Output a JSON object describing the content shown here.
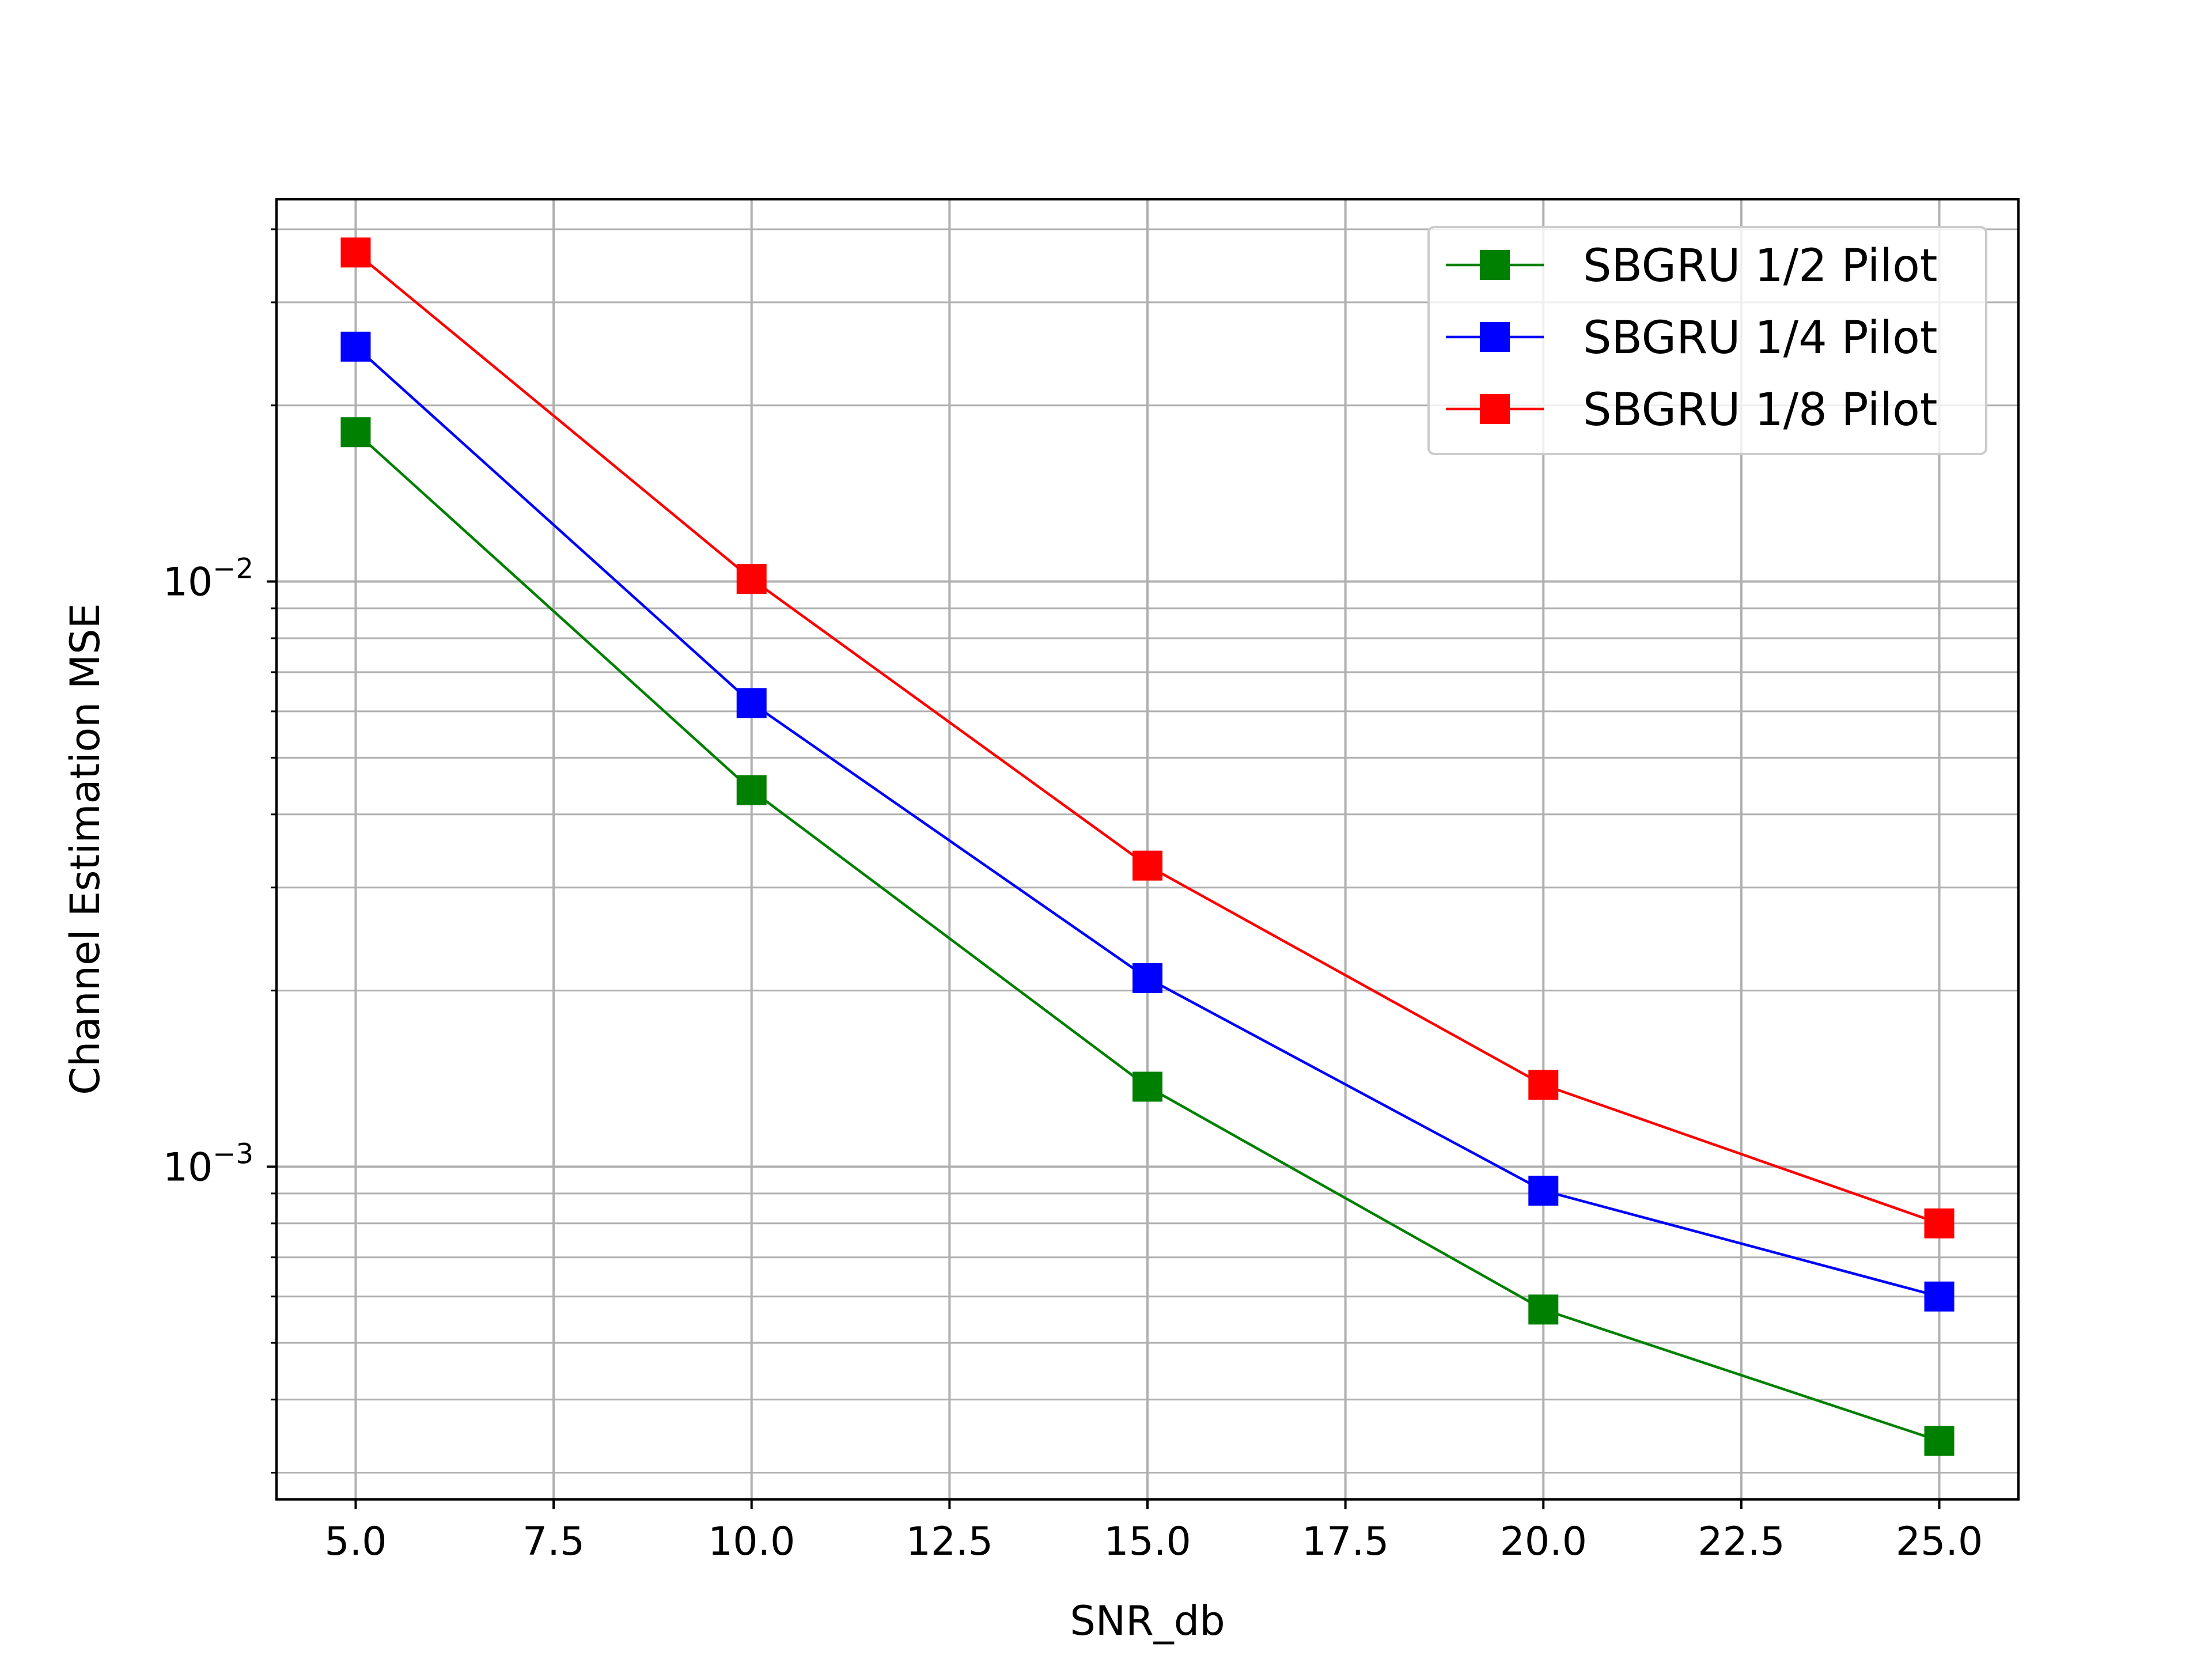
{
  "chart_data": {
    "type": "line",
    "x": [
      5,
      10,
      15,
      20,
      25
    ],
    "series": [
      {
        "name": "SBGRU 1/2 Pilot",
        "color": "#008000",
        "marker": "square",
        "values": [
          0.018,
          0.0044,
          0.00137,
          0.00057,
          0.00034
        ]
      },
      {
        "name": "SBGRU 1/4 Pilot",
        "color": "#0000ff",
        "marker": "square",
        "values": [
          0.0252,
          0.0062,
          0.0021,
          0.00091,
          0.0006
        ]
      },
      {
        "name": "SBGRU 1/8 Pilot",
        "color": "#ff0000",
        "marker": "square",
        "values": [
          0.0365,
          0.0101,
          0.00327,
          0.00138,
          0.0008
        ]
      }
    ],
    "xlabel": "SNR_db",
    "ylabel": "Channel Estimation MSE",
    "xlim": [
      4.0,
      26.0
    ],
    "ylim": [
      0.00027,
      0.045
    ],
    "yscale": "log",
    "xticks": [
      "5.0",
      "7.5",
      "10.0",
      "12.5",
      "15.0",
      "17.5",
      "20.0",
      "22.5",
      "25.0"
    ],
    "xtick_values": [
      5,
      7.5,
      10,
      12.5,
      15,
      17.5,
      20,
      22.5,
      25
    ],
    "yticks": [
      {
        "value": 0.01,
        "base": "10",
        "exp": "−2"
      },
      {
        "value": 0.001,
        "base": "10",
        "exp": "−3"
      }
    ],
    "grid": true,
    "grid_minor": true,
    "legend_position": "upper right"
  }
}
